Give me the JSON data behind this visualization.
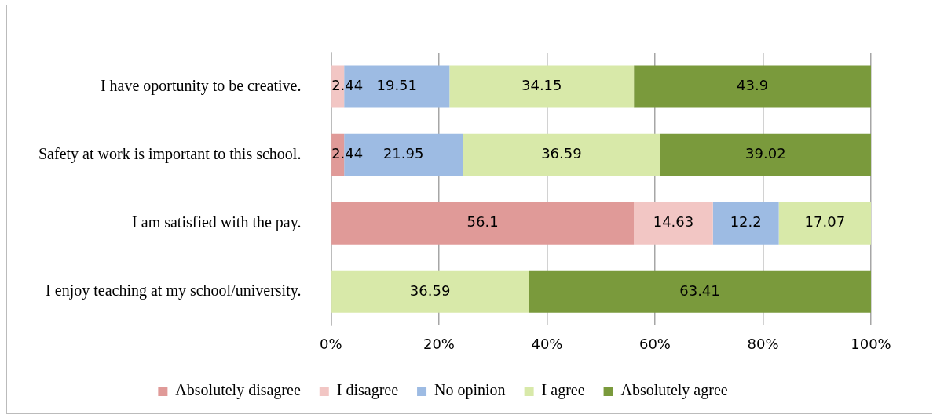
{
  "chart_data": {
    "type": "bar",
    "orientation": "horizontal",
    "stacked": true,
    "categories": [
      "I have oportunity to be creative.",
      "Safety at work is important to this school.",
      "I am satisfied with the pay.",
      "I enjoy teaching at my school/university."
    ],
    "series": [
      {
        "name": "Absolutely disagree",
        "color": "#e09a98",
        "values": [
          null,
          2.44,
          56.1,
          null
        ]
      },
      {
        "name": "I disagree",
        "color": "#f2c6c4",
        "values": [
          2.44,
          null,
          14.63,
          null
        ]
      },
      {
        "name": "No opinion",
        "color": "#9dbbe3",
        "values": [
          19.51,
          21.95,
          12.2,
          null
        ]
      },
      {
        "name": "I agree",
        "color": "#d8e9a9",
        "values": [
          34.15,
          36.59,
          17.07,
          36.59
        ]
      },
      {
        "name": "Absolutely agree",
        "color": "#7a9a3c",
        "values": [
          43.9,
          39.02,
          null,
          63.41
        ]
      }
    ],
    "xlim": [
      0,
      100
    ],
    "xticks": [
      {
        "value": 0,
        "label": "0%"
      },
      {
        "value": 20,
        "label": "20%"
      },
      {
        "value": 40,
        "label": "40%"
      },
      {
        "value": 60,
        "label": "60%"
      },
      {
        "value": 80,
        "label": "80%"
      },
      {
        "value": 100,
        "label": "100%"
      }
    ],
    "grid": "x",
    "legend": "bottom",
    "data_labels": true
  }
}
